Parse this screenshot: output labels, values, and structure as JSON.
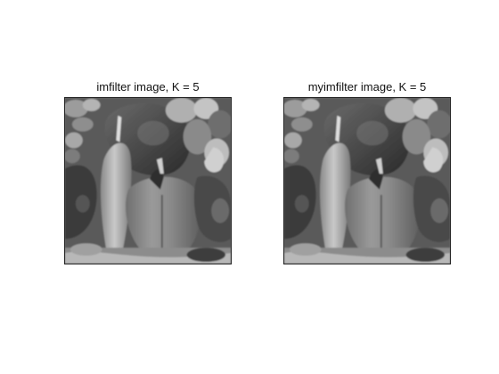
{
  "figure": {
    "subplots": [
      {
        "title": "imfilter image, K = 5",
        "image": "grayscale peppers photograph"
      },
      {
        "title": "myimfilter image, K = 5",
        "image": "grayscale peppers photograph"
      }
    ]
  },
  "colors": {
    "background": "#ffffff",
    "axes_border": "#262626",
    "title_text": "#111111"
  }
}
